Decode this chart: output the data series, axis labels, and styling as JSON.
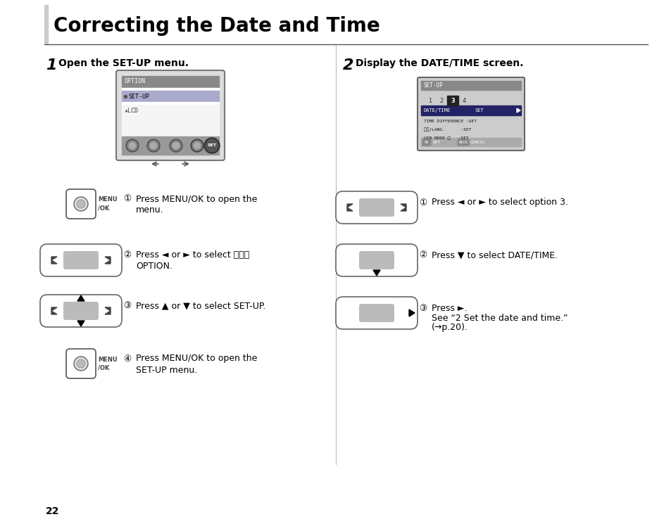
{
  "title": "Correcting the Date and Time",
  "bg_color": "#ffffff",
  "page_number": "22",
  "section1_num": "1",
  "section1_text": "Open the SET-UP menu.",
  "section2_num": "2",
  "section2_text": "Display the DATE/TIME screen.",
  "left_instrs": [
    {
      "num": 1,
      "lines": [
        "Press MENU/OK to open the",
        "menu."
      ]
    },
    {
      "num": 2,
      "lines": [
        "Press ◄ or ► to select ",
        "OPTION."
      ]
    },
    {
      "num": 3,
      "lines": [
        "Press ▲ or ▼ to select SET-UP."
      ]
    },
    {
      "num": 4,
      "lines": [
        "Press MENU/OK to open the",
        "SET-UP menu."
      ]
    }
  ],
  "right_instrs": [
    {
      "num": 1,
      "lines": [
        "Press ◄ or ► to select option 3."
      ]
    },
    {
      "num": 2,
      "lines": [
        "Press ▼ to select DATE/TIME."
      ]
    },
    {
      "num": 3,
      "lines": [
        "Press ►.",
        "See “2 Set the date and time.”",
        "(→p.20)."
      ]
    }
  ]
}
